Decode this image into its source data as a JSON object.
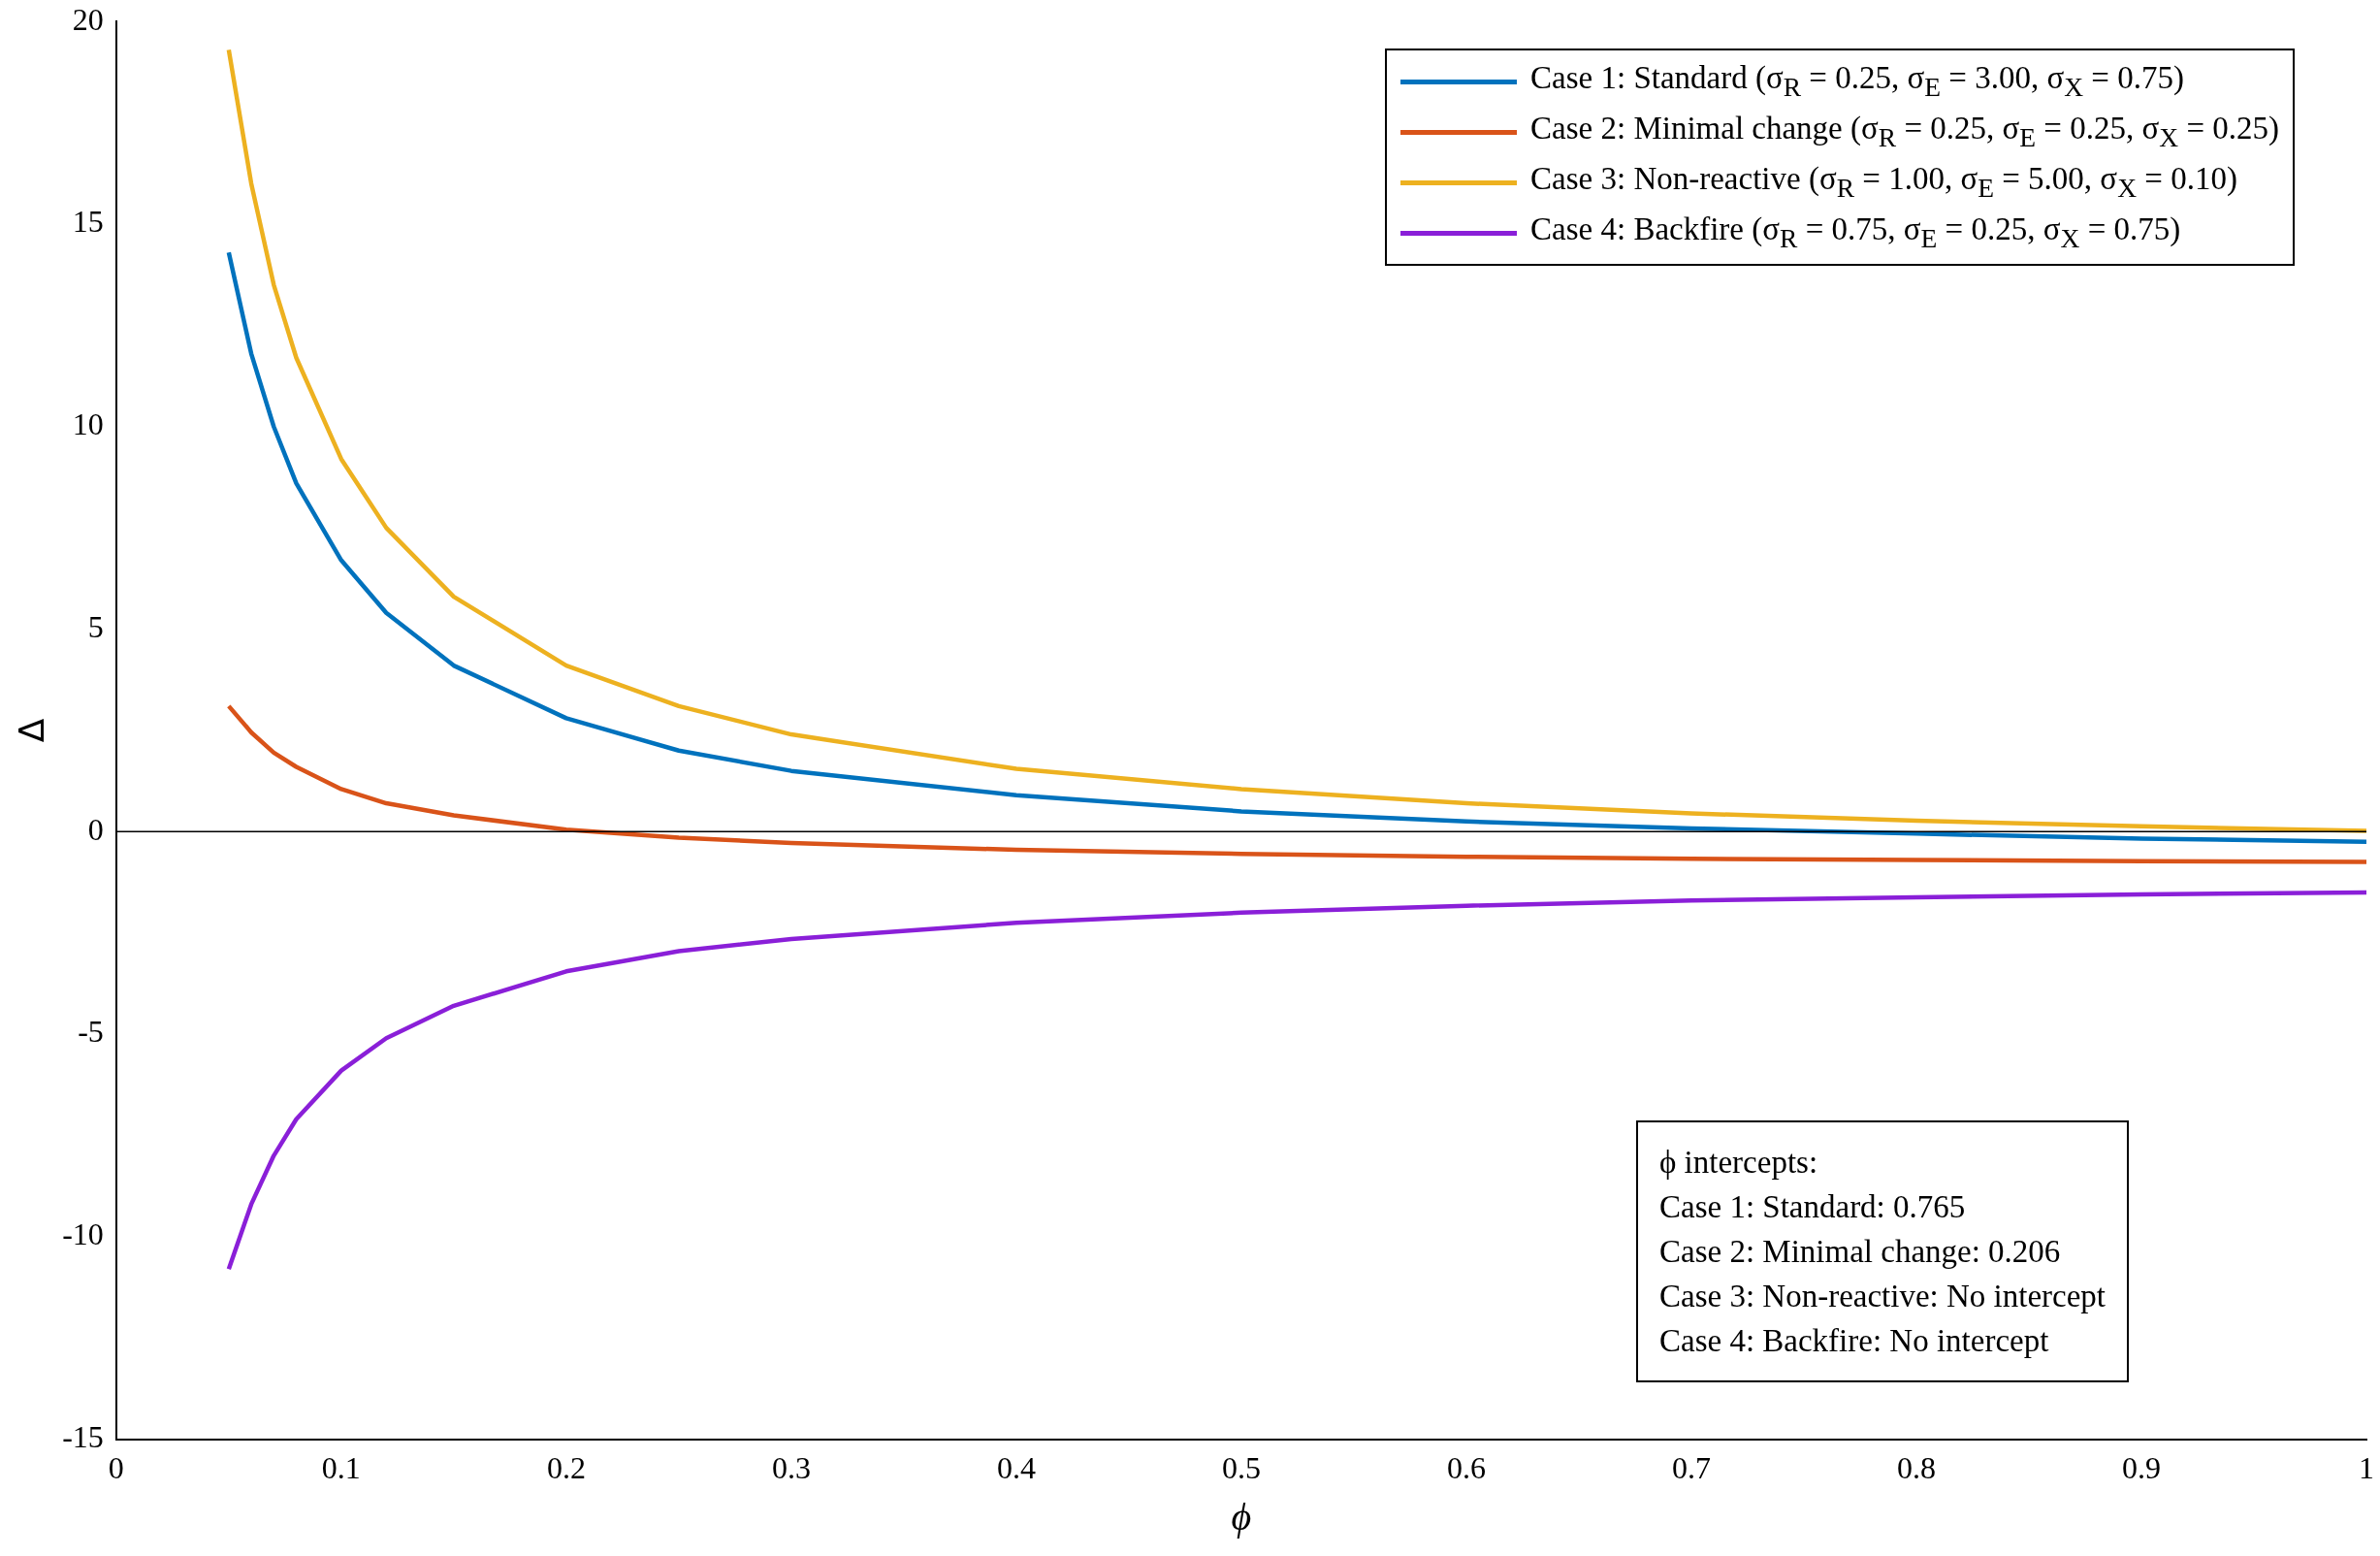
{
  "chart_data": {
    "type": "line",
    "xlabel": "ϕ",
    "ylabel": "Δ",
    "x": [
      0.05,
      0.06,
      0.07,
      0.08,
      0.1,
      0.12,
      0.15,
      0.2,
      0.25,
      0.3,
      0.4,
      0.5,
      0.6,
      0.7,
      0.8,
      0.9,
      1.0
    ],
    "series": [
      {
        "name": "Case 1: Standard (σ$_{R}$ = 0.25, σ$_{E}$ = 3.00, σ$_{X}$ = 0.75)",
        "color": "#0072bd",
        "values": [
          14.3,
          11.8,
          10.0,
          8.6,
          6.7,
          5.4,
          4.1,
          2.8,
          2.0,
          1.5,
          0.9,
          0.5,
          0.25,
          0.08,
          -0.05,
          -0.17,
          -0.25
        ]
      },
      {
        "name": "Case 2: Minimal change (σ$_{R}$ = 0.25, σ$_{E}$ = 0.25, σ$_{X}$ = 0.25)",
        "color": "#d95319",
        "values": [
          3.1,
          2.45,
          1.95,
          1.6,
          1.05,
          0.7,
          0.4,
          0.05,
          -0.15,
          -0.28,
          -0.45,
          -0.55,
          -0.62,
          -0.67,
          -0.7,
          -0.73,
          -0.75
        ]
      },
      {
        "name": "Case 3: Non-reactive (σ$_{R}$ = 1.00, σ$_{E}$ = 5.00, σ$_{X}$ = 0.10)",
        "color": "#edb120",
        "values": [
          19.3,
          16.0,
          13.5,
          11.7,
          9.2,
          7.5,
          5.8,
          4.1,
          3.1,
          2.4,
          1.55,
          1.05,
          0.7,
          0.45,
          0.27,
          0.13,
          0.02
        ]
      },
      {
        "name": "Case 4: Backfire (σ$_{R}$ = 0.75, σ$_{E}$ = 0.25, σ$_{X}$ = 0.75)",
        "color": "#8a1fd8",
        "values": [
          -10.8,
          -9.2,
          -8.0,
          -7.1,
          -5.9,
          -5.1,
          -4.3,
          -3.45,
          -2.95,
          -2.65,
          -2.25,
          -2.0,
          -1.83,
          -1.7,
          -1.62,
          -1.55,
          -1.5
        ]
      }
    ],
    "xlim": [
      0,
      1
    ],
    "xticks": [
      0,
      0.1,
      0.2,
      0.3,
      0.4,
      0.5,
      0.6,
      0.7,
      0.8,
      0.9,
      1
    ],
    "ylim": [
      -15,
      20
    ],
    "yticks": [
      -15,
      -10,
      -5,
      0,
      5,
      10,
      15,
      20
    ],
    "ref_lines": [
      {
        "axis": "y",
        "value": 0,
        "color": "#000000"
      }
    ],
    "grid": false,
    "legend": "top right",
    "annotations": [
      "ϕ intercepts:",
      "Case 1: Standard: 0.765",
      "Case 2: Minimal change: 0.206",
      "Case 3: Non-reactive: No intercept",
      "Case 4: Backfire: No intercept"
    ]
  }
}
